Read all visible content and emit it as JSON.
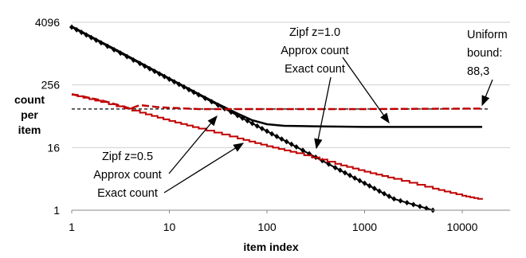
{
  "chart_data": {
    "type": "line",
    "xlabel": "item index",
    "ylabel": "count per item",
    "x_scale": "log10",
    "y_scale": "log2",
    "xlim": [
      1,
      20000
    ],
    "ylim": [
      1,
      4096
    ],
    "x_ticks": [
      {
        "value": 1,
        "label": "1"
      },
      {
        "value": 10,
        "label": "10"
      },
      {
        "value": 100,
        "label": "100"
      },
      {
        "value": 1000,
        "label": "1000"
      },
      {
        "value": 10000,
        "label": "10000"
      }
    ],
    "y_ticks": [
      {
        "value": 1,
        "label": "1"
      },
      {
        "value": 16,
        "label": "16"
      },
      {
        "value": 256,
        "label": "256"
      },
      {
        "value": 4096,
        "label": "4096"
      }
    ],
    "grid": "horizontal",
    "series": [
      {
        "name": "Zipf z=1.0 Approx count",
        "color": "#000000",
        "style": "solid",
        "points": [
          [
            1,
            3400
          ],
          [
            3,
            1150
          ],
          [
            10,
            340
          ],
          [
            30,
            115
          ],
          [
            50,
            72
          ],
          [
            70,
            54
          ],
          [
            100,
            45
          ],
          [
            150,
            42
          ],
          [
            300,
            41
          ],
          [
            1000,
            40
          ],
          [
            3000,
            40
          ],
          [
            16000,
            40
          ]
        ]
      },
      {
        "name": "Zipf z=1.0 Exact count",
        "color": "#000000",
        "style": "diamond-markers",
        "points": [
          [
            1,
            3300
          ],
          [
            2,
            1650
          ],
          [
            5,
            660
          ],
          [
            10,
            330
          ],
          [
            20,
            165
          ],
          [
            50,
            66
          ],
          [
            100,
            33
          ],
          [
            200,
            16.5
          ],
          [
            500,
            6.6
          ],
          [
            1000,
            3.3
          ],
          [
            2000,
            1.65
          ],
          [
            5000,
            1
          ]
        ]
      },
      {
        "name": "Zipf z=0.5 Approx count",
        "color": "#c00000",
        "style": "dashed",
        "points": [
          [
            1,
            170
          ],
          [
            2,
            130
          ],
          [
            3,
            105
          ],
          [
            4,
            90
          ],
          [
            5,
            105
          ],
          [
            8,
            95
          ],
          [
            20,
            88
          ],
          [
            100,
            88
          ],
          [
            1000,
            88
          ],
          [
            16000,
            90
          ]
        ]
      },
      {
        "name": "Zipf z=0.5 Exact count",
        "color": "#c00000",
        "style": "step",
        "points": [
          [
            1,
            165
          ],
          [
            2,
            120
          ],
          [
            5,
            75
          ],
          [
            10,
            52
          ],
          [
            20,
            37
          ],
          [
            50,
            24
          ],
          [
            100,
            17
          ],
          [
            200,
            12.5
          ],
          [
            500,
            7.8
          ],
          [
            1000,
            5.5
          ],
          [
            2000,
            4
          ],
          [
            5000,
            2.6
          ],
          [
            10000,
            1.9
          ],
          [
            16000,
            1.6
          ]
        ]
      }
    ],
    "reference_line": {
      "name": "Uniform bound",
      "value": 88.3,
      "color": "#000000",
      "style": "dashed"
    },
    "annotations": [
      {
        "lines": [
          "Zipf z=1.0",
          "Approx count",
          "Exact count"
        ]
      },
      {
        "lines": [
          "Uniform",
          "bound:",
          "88,3"
        ]
      },
      {
        "lines": [
          "Zipf z=0.5",
          "Approx count",
          "Exact count"
        ]
      }
    ]
  }
}
